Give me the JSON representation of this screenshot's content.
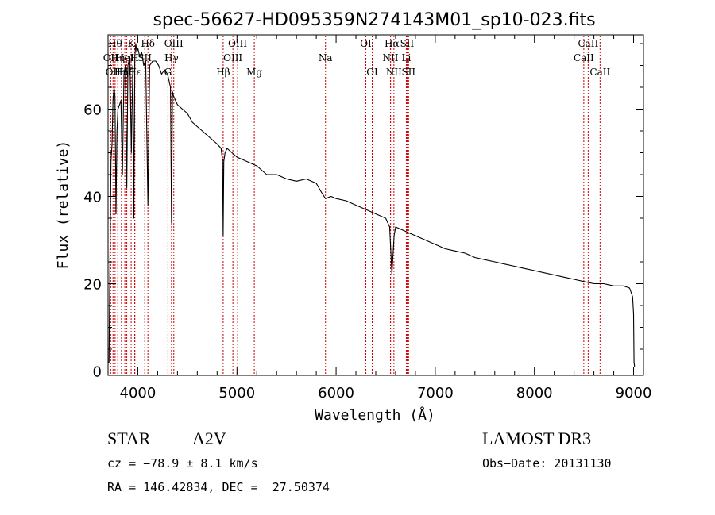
{
  "chart_data": {
    "type": "line",
    "title": "spec-56627-HD095359N274143M01_sp10-023.fits",
    "xlabel": "Wavelength (Å)",
    "ylabel": "Flux (relative)",
    "xlim": [
      3700,
      9100
    ],
    "ylim": [
      -1,
      77
    ],
    "x_ticks": [
      4000,
      5000,
      6000,
      7000,
      8000,
      9000
    ],
    "x_tick_labels": [
      "4000",
      "5000",
      "6000",
      "7000",
      "8000",
      "9000"
    ],
    "y_ticks": [
      0,
      20,
      40,
      60
    ],
    "y_tick_labels": [
      "0",
      "20",
      "40",
      "60"
    ],
    "grid": false,
    "series": [
      {
        "name": "flux",
        "color": "#000000",
        "x": [
          3700,
          3710,
          3720,
          3730,
          3740,
          3750,
          3760,
          3770,
          3780,
          3790,
          3800,
          3815,
          3830,
          3845,
          3860,
          3875,
          3889,
          3900,
          3920,
          3935,
          3950,
          3960,
          3970,
          3980,
          3990,
          4000,
          4020,
          4040,
          4060,
          4080,
          4102,
          4120,
          4150,
          4180,
          4210,
          4240,
          4270,
          4300,
          4320,
          4330,
          4340,
          4350,
          4360,
          4380,
          4400,
          4450,
          4500,
          4550,
          4600,
          4650,
          4700,
          4750,
          4800,
          4840,
          4855,
          4861,
          4867,
          4880,
          4900,
          4950,
          5000,
          5100,
          5200,
          5300,
          5400,
          5500,
          5600,
          5700,
          5800,
          5850,
          5893,
          5950,
          6000,
          6100,
          6200,
          6300,
          6400,
          6500,
          6540,
          6563,
          6585,
          6600,
          6700,
          6800,
          6900,
          7000,
          7100,
          7200,
          7300,
          7400,
          7500,
          7600,
          7700,
          7800,
          7900,
          8000,
          8100,
          8200,
          8300,
          8400,
          8500,
          8600,
          8700,
          8800,
          8900,
          8960,
          8990,
          9000,
          9005,
          9010
        ],
        "y": [
          2,
          2,
          28,
          48,
          52,
          62,
          65,
          63,
          36,
          55,
          60,
          61,
          62,
          45,
          68,
          70,
          42,
          70,
          72,
          50,
          70,
          35,
          72,
          75,
          73,
          74,
          72,
          73,
          70,
          71,
          38,
          70,
          71,
          71,
          70,
          68,
          69,
          68,
          66,
          65,
          34,
          64,
          63,
          62,
          61,
          60,
          59,
          57,
          56,
          55,
          54,
          53,
          52,
          51,
          48,
          31,
          48,
          50,
          51,
          50,
          49,
          48,
          47,
          45,
          45,
          44,
          43.5,
          44,
          43,
          41,
          39.5,
          40,
          39.5,
          39,
          38,
          37,
          36,
          35,
          33,
          22,
          31,
          33,
          32,
          31,
          30,
          29,
          28,
          27.5,
          27,
          26,
          25.5,
          25,
          24.5,
          24,
          23.5,
          23,
          22.5,
          22,
          21.5,
          21,
          20.5,
          20,
          20,
          19.5,
          19.5,
          19,
          17,
          13,
          2,
          1
        ]
      }
    ],
    "line_markers": [
      {
        "wavelength": 3727,
        "label": "OII",
        "row": 2
      },
      {
        "wavelength": 3750,
        "label": "OII",
        "row": 3
      },
      {
        "wavelength": 3771,
        "label": "Hθ",
        "row": 1
      },
      {
        "wavelength": 3798,
        "label": "Hη",
        "row": 2
      },
      {
        "wavelength": 3835,
        "label": "Hη",
        "row": 3
      },
      {
        "wavelength": 3869,
        "label": "HeI",
        "row": 2
      },
      {
        "wavelength": 3889,
        "label": "Hζ",
        "row": 3
      },
      {
        "wavelength": 3933,
        "label": "K",
        "row": 1
      },
      {
        "wavelength": 3969,
        "label": "H",
        "row": 2
      },
      {
        "wavelength": 3970,
        "label": "Hε",
        "row": 3
      },
      {
        "wavelength": 4070,
        "label": "SII",
        "row": 2
      },
      {
        "wavelength": 4102,
        "label": "Hδ",
        "row": 1
      },
      {
        "wavelength": 4304,
        "label": "G",
        "row": 3
      },
      {
        "wavelength": 4340,
        "label": "Hγ",
        "row": 2
      },
      {
        "wavelength": 4363,
        "label": "OIII",
        "row": 1
      },
      {
        "wavelength": 4861,
        "label": "Hβ",
        "row": 3
      },
      {
        "wavelength": 4959,
        "label": "OIII",
        "row": 2
      },
      {
        "wavelength": 5007,
        "label": "OIII",
        "row": 1
      },
      {
        "wavelength": 5175,
        "label": "Mg",
        "row": 3
      },
      {
        "wavelength": 5893,
        "label": "Na",
        "row": 2
      },
      {
        "wavelength": 6300,
        "label": "OI",
        "row": 1
      },
      {
        "wavelength": 6364,
        "label": "OI",
        "row": 3
      },
      {
        "wavelength": 6548,
        "label": "NII",
        "row": 2
      },
      {
        "wavelength": 6563,
        "label": "Hα",
        "row": 1
      },
      {
        "wavelength": 6583,
        "label": "NII",
        "row": 3
      },
      {
        "wavelength": 6708,
        "label": "Li",
        "row": 2
      },
      {
        "wavelength": 6716,
        "label": "SII",
        "row": 1
      },
      {
        "wavelength": 6731,
        "label": "SII",
        "row": 3
      },
      {
        "wavelength": 8498,
        "label": "CaII",
        "row": 2
      },
      {
        "wavelength": 8542,
        "label": "CaII",
        "row": 1
      },
      {
        "wavelength": 8662,
        "label": "CaII",
        "row": 3
      }
    ],
    "marker_color": "#cc0000"
  },
  "info": {
    "object_class": "STAR",
    "subclass": "A2V",
    "survey": "LAMOST DR3",
    "redshift": "cz = −78.9 ± 8.1 km/s",
    "obs_date": "Obs−Date: 20131130",
    "coords": "RA = 146.42834, DEC =  27.50374"
  }
}
